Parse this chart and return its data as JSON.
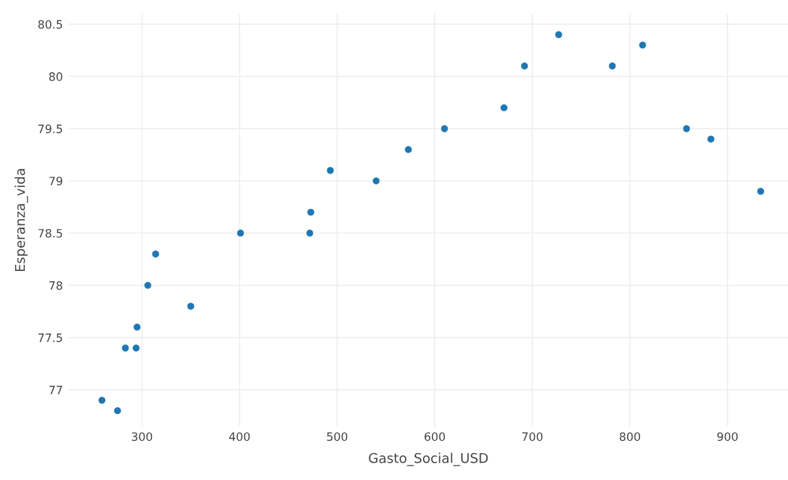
{
  "chart_data": {
    "type": "scatter",
    "xlabel": "Gasto_Social_USD",
    "ylabel": "Esperanza_vida",
    "x": [
      259,
      275,
      283,
      294,
      295,
      306,
      314,
      350,
      401,
      472,
      473,
      493,
      540,
      573,
      610,
      671,
      692,
      727,
      782,
      813,
      858,
      883,
      934
    ],
    "series": [
      {
        "color": "#1f77b4",
        "values": [
          76.9,
          76.8,
          77.4,
          77.4,
          77.6,
          78.0,
          78.3,
          77.8,
          78.5,
          78.5,
          78.7,
          79.1,
          79.0,
          79.3,
          79.5,
          79.7,
          80.1,
          80.4,
          80.1,
          80.3,
          79.5,
          79.4,
          78.9
        ]
      }
    ],
    "marker": "circle",
    "xlim": [
      225,
      962
    ],
    "ylim": [
      76.65,
      80.6
    ],
    "xticks": [
      300,
      400,
      500,
      600,
      700,
      800,
      900
    ],
    "yticks": [
      77,
      {
        "value": 77.5,
        "label": "77.5"
      },
      78,
      {
        "value": 78.5,
        "label": "78.5"
      },
      79,
      {
        "value": 79.5,
        "label": "79.5"
      },
      80,
      {
        "value": 80.5,
        "label": "80.5"
      }
    ],
    "grid": true
  }
}
